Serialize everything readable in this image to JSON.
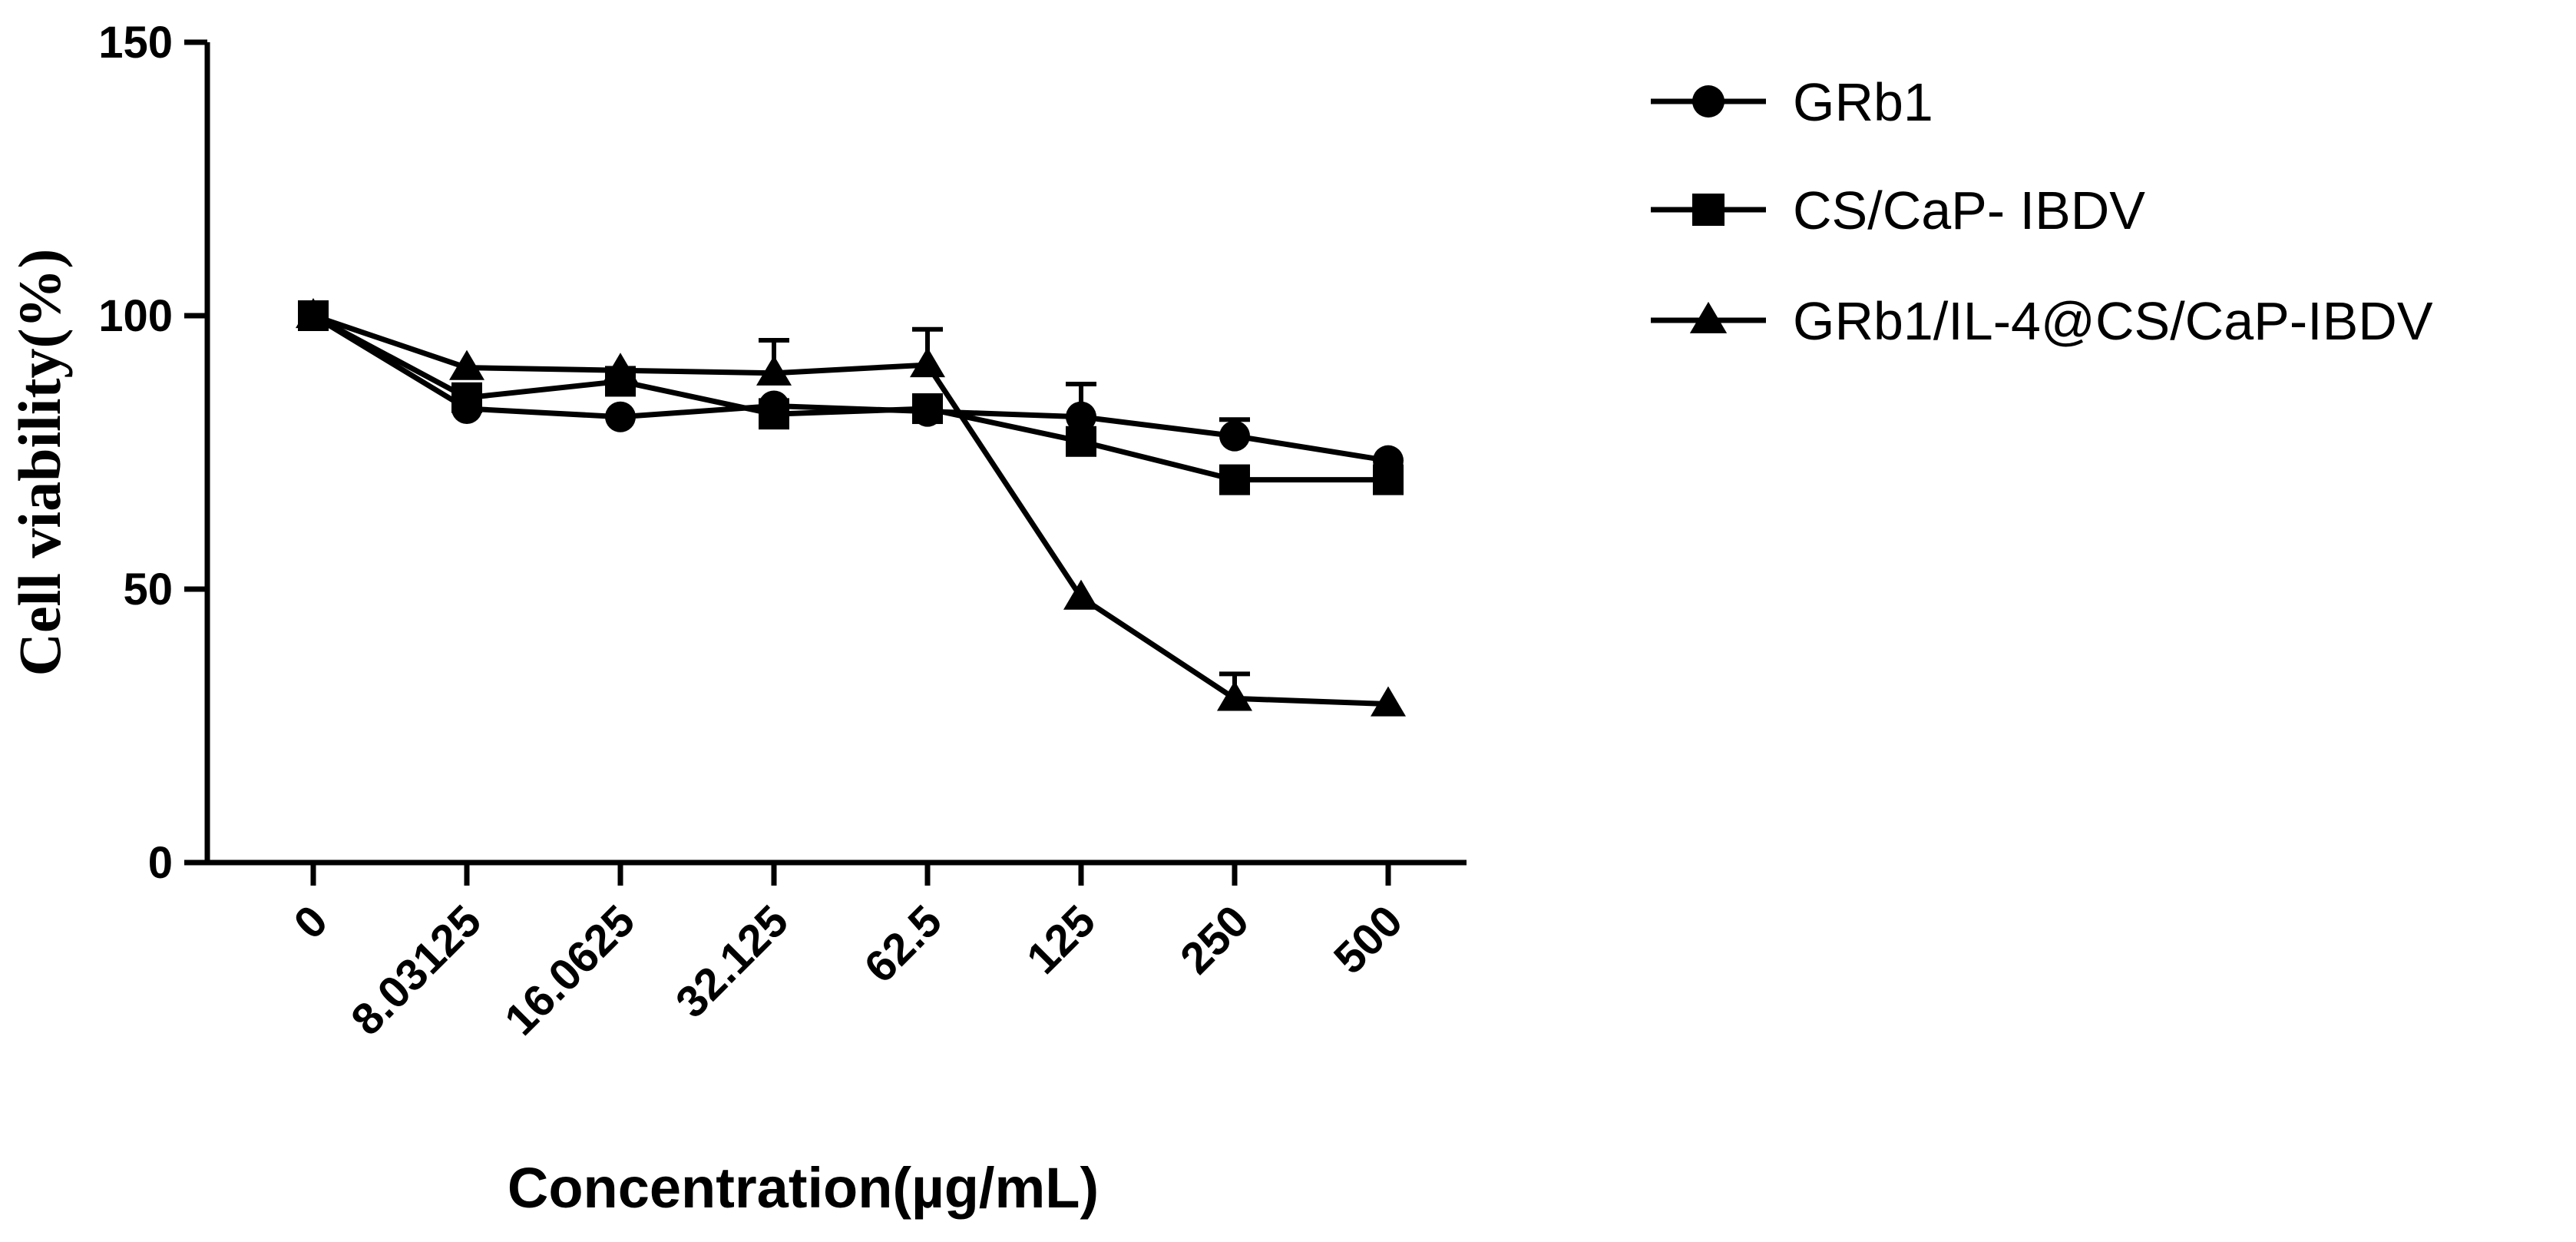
{
  "chart_data": {
    "type": "line",
    "title": "",
    "xlabel": "Concentration(µg/mL)",
    "ylabel": "Cell viability(%)",
    "categories": [
      "0",
      "8.03125",
      "16.0625",
      "32.125",
      "62.5",
      "125",
      "250",
      "500"
    ],
    "ylim": [
      0,
      150
    ],
    "yticks": [
      0,
      50,
      100,
      150
    ],
    "legend_position": "right",
    "series": [
      {
        "name": "GRb1",
        "marker": "circle",
        "values": [
          100,
          83,
          81.5,
          83.5,
          82.5,
          81.5,
          78,
          73.5
        ],
        "error": [
          0,
          1,
          0,
          1,
          0,
          6,
          3,
          0
        ]
      },
      {
        "name": "CS/CaP- IBDV",
        "marker": "square",
        "values": [
          100,
          85,
          88,
          82,
          83,
          77,
          70,
          70
        ],
        "error": [
          0,
          1,
          1,
          1,
          1,
          1,
          1,
          0
        ]
      },
      {
        "name": "GRb1/IL-4@CS/CaP-IBDV",
        "marker": "triangle",
        "values": [
          100,
          90.5,
          90,
          89.5,
          91,
          48.5,
          30,
          29
        ],
        "error": [
          0,
          0,
          0,
          6,
          6.5,
          0,
          4.5,
          0
        ]
      }
    ]
  }
}
